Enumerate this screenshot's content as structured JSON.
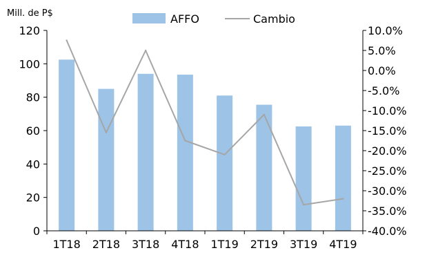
{
  "chart_data": {
    "type": "bar",
    "categories": [
      "1T18",
      "2T18",
      "3T18",
      "4T18",
      "1T19",
      "2T19",
      "3T19",
      "4T19"
    ],
    "series": [
      {
        "name": "AFFO",
        "type": "bar",
        "axis": "left",
        "color": "#9dc3e6",
        "values": [
          102.5,
          85,
          94,
          93.5,
          81,
          75.5,
          62.5,
          63
        ]
      },
      {
        "name": "Cambio",
        "type": "line",
        "axis": "right",
        "color": "#a6a6a6",
        "values": [
          7.5,
          -15.5,
          5.0,
          -17.5,
          -21.0,
          -11.0,
          -33.5,
          -32.0
        ]
      }
    ],
    "y_left": {
      "label": "Mill. de P$",
      "ylim": [
        0,
        120
      ],
      "ticks": [
        0,
        20,
        40,
        60,
        80,
        100,
        120
      ],
      "tick_labels": [
        "0",
        "20",
        "40",
        "60",
        "80",
        "100",
        "120"
      ]
    },
    "y_right": {
      "ylim": [
        -40,
        10
      ],
      "ticks": [
        -40,
        -35,
        -30,
        -25,
        -20,
        -15,
        -10,
        -5,
        0,
        5,
        10
      ],
      "tick_labels": [
        "-40.0%",
        "-35.0%",
        "-30.0%",
        "-25.0%",
        "-20.0%",
        "-15.0%",
        "-10.0%",
        "-5.0%",
        "0.0%",
        "5.0%",
        "10.0%"
      ]
    },
    "grid": false,
    "legend": "top-center"
  }
}
